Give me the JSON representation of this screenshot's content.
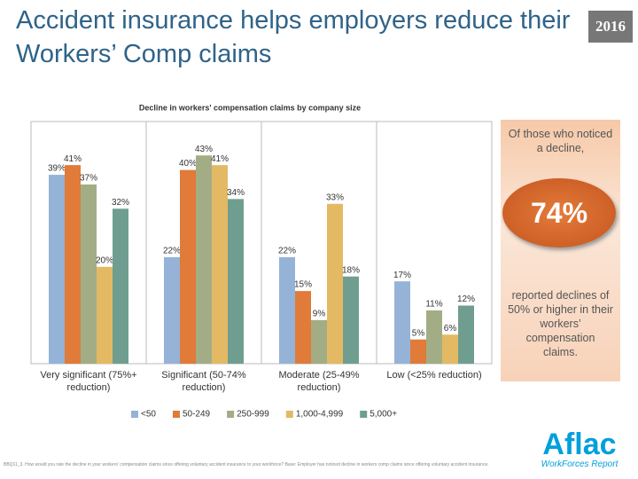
{
  "slide": {
    "title": "Accident insurance helps employers reduce their Workers’ Comp claims",
    "year": "2016",
    "callout": {
      "top": "Of those who noticed a decline,",
      "stat": "74%",
      "bottom": "reported declines of 50% or higher in their workers’ compensation claims."
    },
    "footnote": "BBQ11_3. How would you rate the decline in your workers' compensation claims since offering voluntary accident insurance to your workforce? Base: Employer has noticed decline in workers comp claims since offering voluntary accident insurance.",
    "logo": {
      "name": "Aflac",
      "tagline": "WorkForces Report"
    }
  },
  "chart_data": {
    "type": "bar",
    "title": "Decline in workers' compensation claims by company size",
    "categories": [
      "Very significant (75%+ reduction)",
      "Significant (50-74% reduction)",
      "Moderate (25-49% reduction)",
      "Low (<25% reduction)"
    ],
    "ylim": [
      0,
      50
    ],
    "legend": "bottom",
    "series": [
      {
        "name": "<50",
        "color": "#95b3d7",
        "values": [
          39,
          22,
          22,
          17
        ],
        "value_labels": [
          "39%",
          "22%",
          "22%",
          "17%"
        ]
      },
      {
        "name": "50-249",
        "color": "#e07b39",
        "values": [
          41,
          40,
          15,
          5
        ],
        "value_labels": [
          "41%",
          "40%",
          "15%",
          "5%"
        ]
      },
      {
        "name": "250-999",
        "color": "#a3ad85",
        "values": [
          37,
          43,
          9,
          11
        ],
        "value_labels": [
          "37%",
          "43%",
          "9%",
          "11%"
        ]
      },
      {
        "name": "1,000-4,999",
        "color": "#e3b964",
        "values": [
          20,
          41,
          33,
          6
        ],
        "value_labels": [
          "20%",
          "41%",
          "33%",
          "6%"
        ]
      },
      {
        "name": "5,000+",
        "color": "#6f9e90",
        "values": [
          32,
          34,
          18,
          12
        ],
        "value_labels": [
          "32%",
          "34%",
          "18%",
          "12%"
        ]
      }
    ]
  }
}
